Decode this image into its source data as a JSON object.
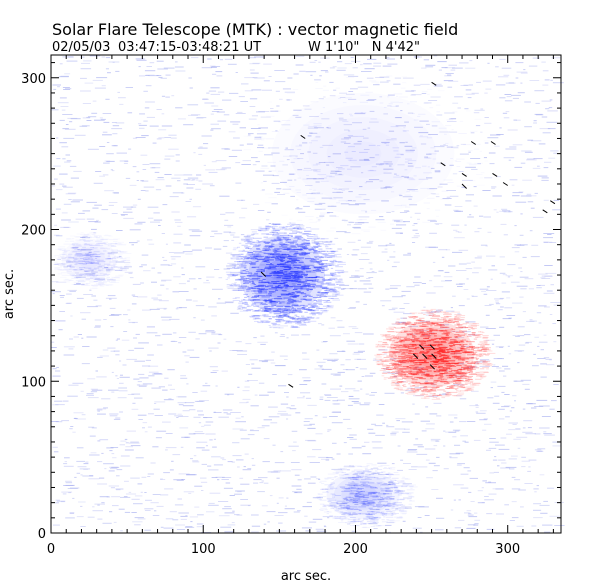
{
  "chart_data": {
    "type": "heatmap",
    "title_line1": "Solar Flare Telescope (MTK) : vector magnetic field",
    "title_line2_date": "02/05/03",
    "title_line2_time": "03:47:15-03:48:21 UT",
    "title_line2_pos": "W 1'10\"   N 4'42\"",
    "xlabel": "arc sec.",
    "ylabel": "arc sec.",
    "xlim": [
      0,
      335
    ],
    "ylim": [
      0,
      315
    ],
    "xticks": [
      0,
      100,
      200,
      300
    ],
    "yticks": [
      0,
      100,
      200,
      300
    ],
    "xtick_labels": [
      "0",
      "100",
      "200",
      "300"
    ],
    "ytick_labels": [
      "0",
      "100",
      "200",
      "300"
    ],
    "colors": {
      "negative": "#3344ff",
      "positive": "#ff2a2a",
      "noise": "#9aa3ee",
      "vector": "#000000"
    },
    "field_blobs": [
      {
        "name": "negative-polarity-core",
        "polarity": "negative",
        "x": 152,
        "y": 170,
        "rx": 28,
        "ry": 26,
        "strength": 0.95
      },
      {
        "name": "positive-polarity-core",
        "polarity": "positive",
        "x": 250,
        "y": 118,
        "rx": 28,
        "ry": 22,
        "strength": 0.9
      },
      {
        "name": "weak-negative-south",
        "polarity": "negative",
        "x": 205,
        "y": 25,
        "rx": 24,
        "ry": 16,
        "strength": 0.35
      },
      {
        "name": "weak-negative-west",
        "polarity": "negative",
        "x": 25,
        "y": 180,
        "rx": 18,
        "ry": 14,
        "strength": 0.2
      },
      {
        "name": "weak-negative-north",
        "polarity": "negative",
        "x": 205,
        "y": 250,
        "rx": 60,
        "ry": 40,
        "strength": 0.15
      }
    ],
    "vectors": [
      {
        "x": 138,
        "y": 172,
        "dx": 3,
        "dy": -3
      },
      {
        "x": 156,
        "y": 98,
        "dx": 3,
        "dy": -2
      },
      {
        "x": 164,
        "y": 262,
        "dx": 3,
        "dy": -2
      },
      {
        "x": 250,
        "y": 297,
        "dx": 3,
        "dy": -2
      },
      {
        "x": 256,
        "y": 244,
        "dx": 3,
        "dy": -2
      },
      {
        "x": 270,
        "y": 237,
        "dx": 3,
        "dy": -2
      },
      {
        "x": 270,
        "y": 230,
        "dx": 3,
        "dy": -3
      },
      {
        "x": 276,
        "y": 258,
        "dx": 3,
        "dy": -2
      },
      {
        "x": 289,
        "y": 258,
        "dx": 3,
        "dy": -2
      },
      {
        "x": 290,
        "y": 237,
        "dx": 3,
        "dy": -2
      },
      {
        "x": 297,
        "y": 231,
        "dx": 3,
        "dy": -2
      },
      {
        "x": 323,
        "y": 213,
        "dx": 3,
        "dy": -2
      },
      {
        "x": 328,
        "y": 219,
        "dx": 3,
        "dy": -2
      },
      {
        "x": 238,
        "y": 118,
        "dx": 3,
        "dy": -3
      },
      {
        "x": 244,
        "y": 118,
        "dx": 3,
        "dy": -3
      },
      {
        "x": 250,
        "y": 118,
        "dx": 3,
        "dy": -3
      },
      {
        "x": 242,
        "y": 124,
        "dx": 3,
        "dy": -3
      },
      {
        "x": 249,
        "y": 124,
        "dx": 3,
        "dy": -3
      },
      {
        "x": 249,
        "y": 111,
        "dx": 3,
        "dy": -3
      }
    ]
  }
}
